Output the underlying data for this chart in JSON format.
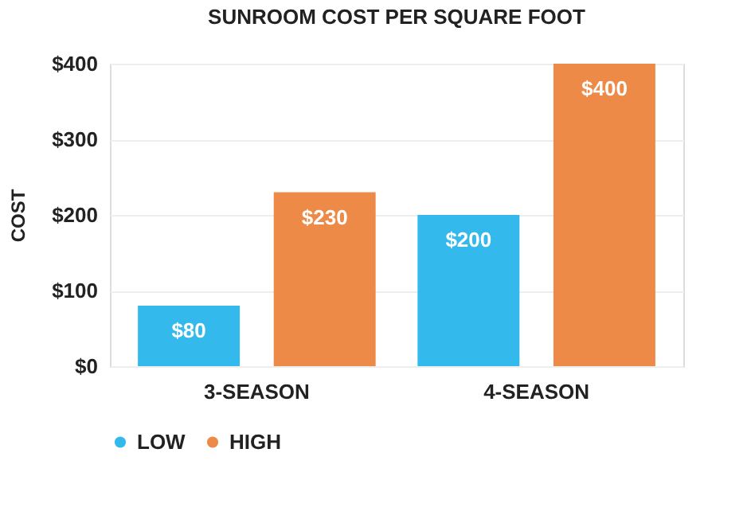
{
  "chart_data": {
    "type": "bar",
    "title": "SUNROOM COST PER SQUARE FOOT",
    "ylabel": "COST",
    "categories": [
      "3-SEASON",
      "4-SEASON"
    ],
    "series": [
      {
        "name": "LOW",
        "color": "#33b9ec",
        "values": [
          80,
          200
        ],
        "value_labels": [
          "$80",
          "$200"
        ]
      },
      {
        "name": "HIGH",
        "color": "#ee8a47",
        "values": [
          230,
          400
        ],
        "value_labels": [
          "$230",
          "$400"
        ]
      }
    ],
    "ylim": [
      0,
      400
    ],
    "yticks": [
      {
        "value": 0,
        "label": "$0"
      },
      {
        "value": 100,
        "label": "$100"
      },
      {
        "value": 200,
        "label": "$200"
      },
      {
        "value": 300,
        "label": "$300"
      },
      {
        "value": 400,
        "label": "$400"
      }
    ],
    "grid": "y",
    "legend": "bottom"
  }
}
